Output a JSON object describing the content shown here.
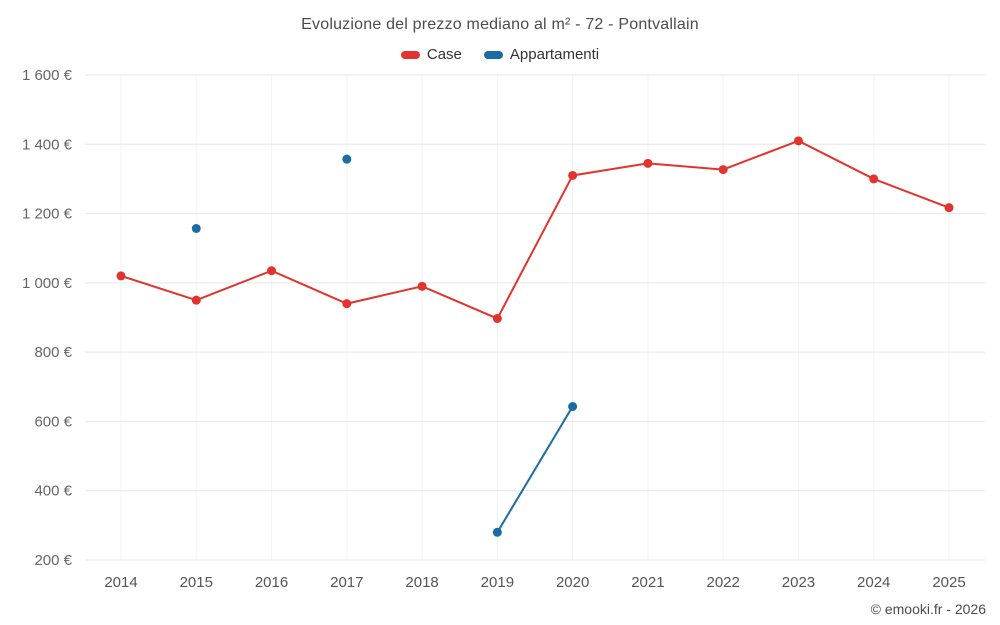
{
  "page": {
    "background": "#ffffff"
  },
  "footer": {
    "copyright": "© emooki.fr - 2026"
  },
  "chart_data": {
    "type": "line",
    "title": "Evoluzione del prezzo mediano al m² - 72 - Pontvallain",
    "x": [
      2014,
      2015,
      2016,
      2017,
      2018,
      2019,
      2020,
      2021,
      2022,
      2023,
      2024,
      2025
    ],
    "ylim": [
      200,
      1600
    ],
    "ytick_step": 200,
    "ytick_suffix": " €",
    "grid": true,
    "legend_position": "top",
    "axis_text_color": "#666666",
    "grid_color_h": "#e7e7e7",
    "grid_color_v": "#f3f3f3",
    "series": [
      {
        "name": "Case",
        "color": "#e2342e",
        "points": [
          [
            2014,
            1020
          ],
          [
            2015,
            950
          ],
          [
            2016,
            1035
          ],
          [
            2017,
            940
          ],
          [
            2018,
            990
          ],
          [
            2019,
            897
          ],
          [
            2020,
            1310
          ],
          [
            2021,
            1345
          ],
          [
            2022,
            1327
          ],
          [
            2023,
            1410
          ],
          [
            2024,
            1300
          ],
          [
            2025,
            1217
          ]
        ]
      },
      {
        "name": "Appartamenti",
        "color": "#1a6da2",
        "points": [
          [
            2015,
            1157
          ],
          [
            2017,
            1357
          ],
          [
            2019,
            280
          ],
          [
            2020,
            643
          ]
        ]
      }
    ]
  }
}
